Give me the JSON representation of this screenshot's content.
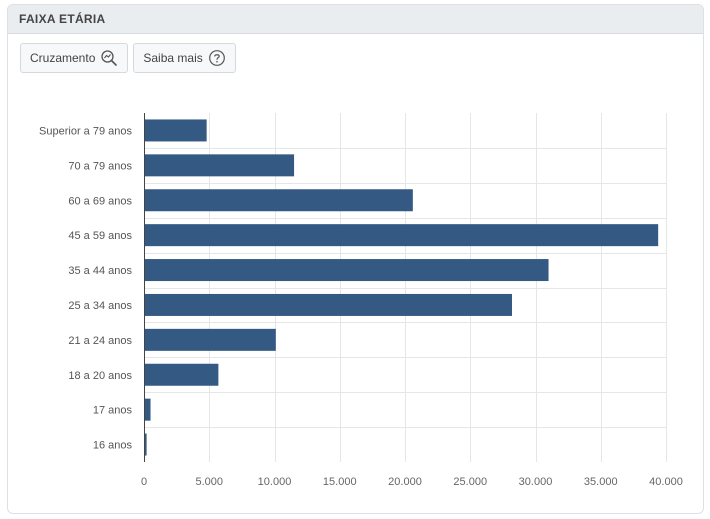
{
  "panel": {
    "title": "FAIXA ETÁRIA"
  },
  "toolbar": {
    "crossing_label": "Cruzamento",
    "crossing_icon": "zoom-chart-icon",
    "learn_more_label": "Saiba mais",
    "learn_more_icon": "question-circle-icon"
  },
  "colors": {
    "bar": "#345a84",
    "grid": "#e6e6e6",
    "axis": "#444444",
    "header_bg": "#eaedf0"
  },
  "chart_data": {
    "type": "bar",
    "orientation": "horizontal",
    "title": "",
    "xlabel": "",
    "ylabel": "",
    "categories": [
      "Superior a 79 anos",
      "70 a 79 anos",
      "60 a 69 anos",
      "45 a 59 anos",
      "35 a 44 anos",
      "25 a 34 anos",
      "21 a 24 anos",
      "18 a 20 anos",
      "17 anos",
      "16 anos"
    ],
    "values": [
      4800,
      11500,
      20600,
      39400,
      31000,
      28200,
      10100,
      5700,
      500,
      200
    ],
    "xlim": [
      0,
      40000
    ],
    "xticks": [
      0,
      5000,
      10000,
      15000,
      20000,
      25000,
      30000,
      35000,
      40000
    ],
    "xtick_labels": [
      "0",
      "5.000",
      "10.000",
      "15.000",
      "20.000",
      "25.000",
      "30.000",
      "35.000",
      "40.000"
    ],
    "grid": true,
    "legend": "none"
  }
}
